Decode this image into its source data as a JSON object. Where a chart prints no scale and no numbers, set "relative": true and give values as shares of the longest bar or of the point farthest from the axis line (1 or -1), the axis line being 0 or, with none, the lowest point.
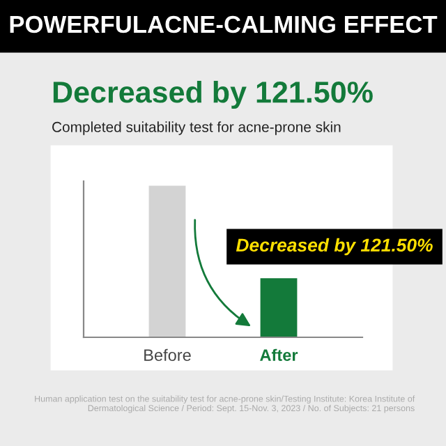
{
  "chart_data": {
    "type": "bar",
    "title": "POWERFULACNE-CALMING EFFECT",
    "subtitle": "Decreased by 121.50%",
    "annotations": [
      "Completed suitability test for acne-prone skin",
      "Decreased by 121.50%",
      "Human application test on the suitability test for acne-prone skin/Testing Institute: Korea Institute of Dermatological Science / Period: Sept. 15-Nov. 3, 2023 / No. of Subjects: 21 persons"
    ],
    "categories": [
      "Before",
      "After"
    ],
    "values": [
      1,
      0.39
    ],
    "colors": [
      "#d3d3d3",
      "#137a3a"
    ],
    "relative": true,
    "grid": false,
    "legend": false
  }
}
